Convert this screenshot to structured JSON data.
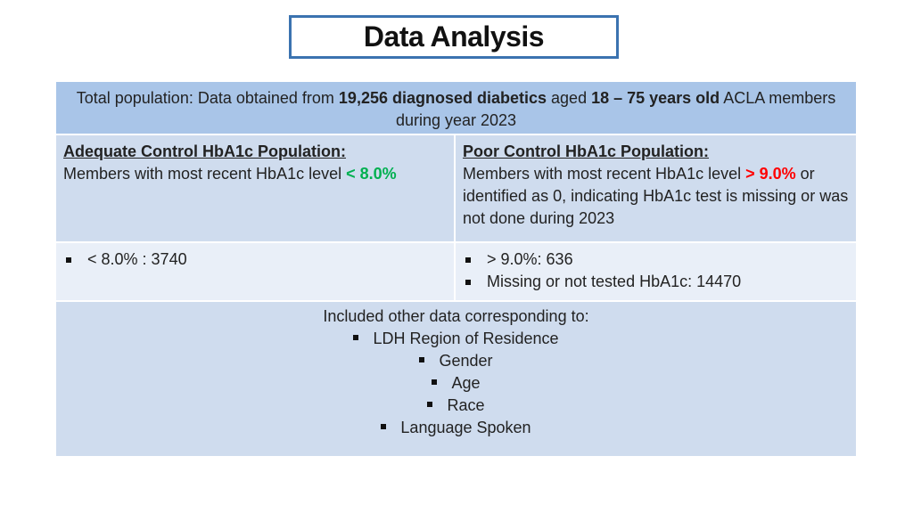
{
  "title": "Data Analysis",
  "header": {
    "part1": "Total population: Data obtained from ",
    "part2_bold": "19,256 diagnosed diabetics",
    "part3": " aged ",
    "part4_bold": "18 – 75 years old",
    "part5": " ACLA members during year 2023"
  },
  "adequate": {
    "heading": "Adequate Control HbA1c Population:",
    "desc": "Members with most recent HbA1c level ",
    "threshold": "< 8.0%",
    "threshold_color": "#00b050",
    "count_line": "< 8.0% : 3740"
  },
  "poor": {
    "heading": "Poor Control HbA1c Population:",
    "desc_before": "Members with most recent HbA1c level ",
    "threshold": "> 9.0%",
    "threshold_color": "#ff0000",
    "desc_after": " or identified as 0, indicating HbA1c test is missing or was not done during 2023",
    "count_lines": [
      "> 9.0%: 636",
      "Missing or not tested HbA1c: 14470"
    ]
  },
  "other": {
    "intro": "Included other data corresponding to:",
    "items": [
      "LDH Region of Residence",
      "Gender",
      "Age",
      "Race",
      "Language Spoken"
    ]
  },
  "colors": {
    "title_border": "#3b73b0",
    "header_fill": "#a9c5e8",
    "row_fill_dark": "#cfdcee",
    "row_fill_light": "#e9eff8"
  }
}
